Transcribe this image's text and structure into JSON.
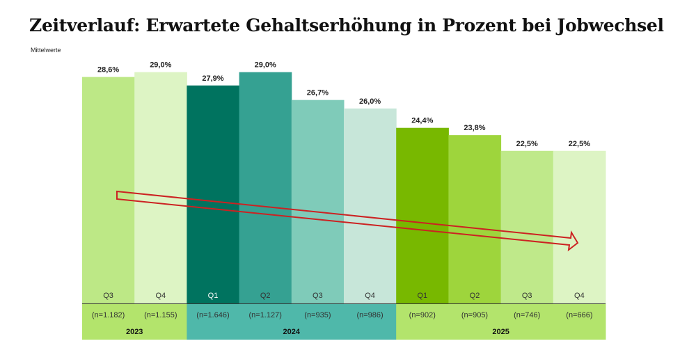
{
  "chart_data": {
    "type": "bar",
    "title": "Zeitverlauf: Erwartete Gehaltserhöhung in Prozent bei Jobwechsel",
    "subtitle": "Mittelwerte",
    "categories": [
      "Q3",
      "Q4",
      "Q1",
      "Q2",
      "Q3",
      "Q4",
      "Q1",
      "Q2",
      "Q3",
      "Q4"
    ],
    "years": [
      "2023",
      "2023",
      "2024",
      "2024",
      "2024",
      "2024",
      "2025",
      "2025",
      "2025",
      "2025"
    ],
    "values": [
      28.6,
      29.0,
      27.9,
      29.0,
      26.7,
      26.0,
      24.4,
      23.8,
      22.5,
      22.5
    ],
    "data_labels": [
      "28,6%",
      "29,0%",
      "27,9%",
      "29,0%",
      "26,7%",
      "26,0%",
      "24,4%",
      "23,8%",
      "22,5%",
      "22,5%"
    ],
    "n_labels": [
      "(n=1.182)",
      "(n=1.155)",
      "(n=1.646)",
      "(n=1.127)",
      "(n=935)",
      "(n=986)",
      "(n=902)",
      "(n=905)",
      "(n=746)",
      "(n=666)"
    ],
    "year_groups": [
      {
        "label": "2023",
        "count": 2,
        "color": "#b3e46c"
      },
      {
        "label": "2024",
        "count": 4,
        "color": "#4fb8aa"
      },
      {
        "label": "2025",
        "count": 4,
        "color": "#b3e46c"
      }
    ],
    "colors": [
      "#bde886",
      "#ddf4c4",
      "#00735f",
      "#35a192",
      "#7fcbb9",
      "#c7e6d9",
      "#78b800",
      "#9ed53c",
      "#bfe98a",
      "#ddf4c4"
    ],
    "quarter_label_colors": [
      "#333",
      "#333",
      "#ffffff",
      "#333",
      "#333",
      "#333",
      "#333",
      "#333",
      "#333",
      "#333"
    ],
    "ylim": [
      9.9,
      30
    ],
    "grid": false,
    "annotation": {
      "type": "trend-arrow",
      "direction": "down",
      "color": "#cc2222"
    }
  }
}
